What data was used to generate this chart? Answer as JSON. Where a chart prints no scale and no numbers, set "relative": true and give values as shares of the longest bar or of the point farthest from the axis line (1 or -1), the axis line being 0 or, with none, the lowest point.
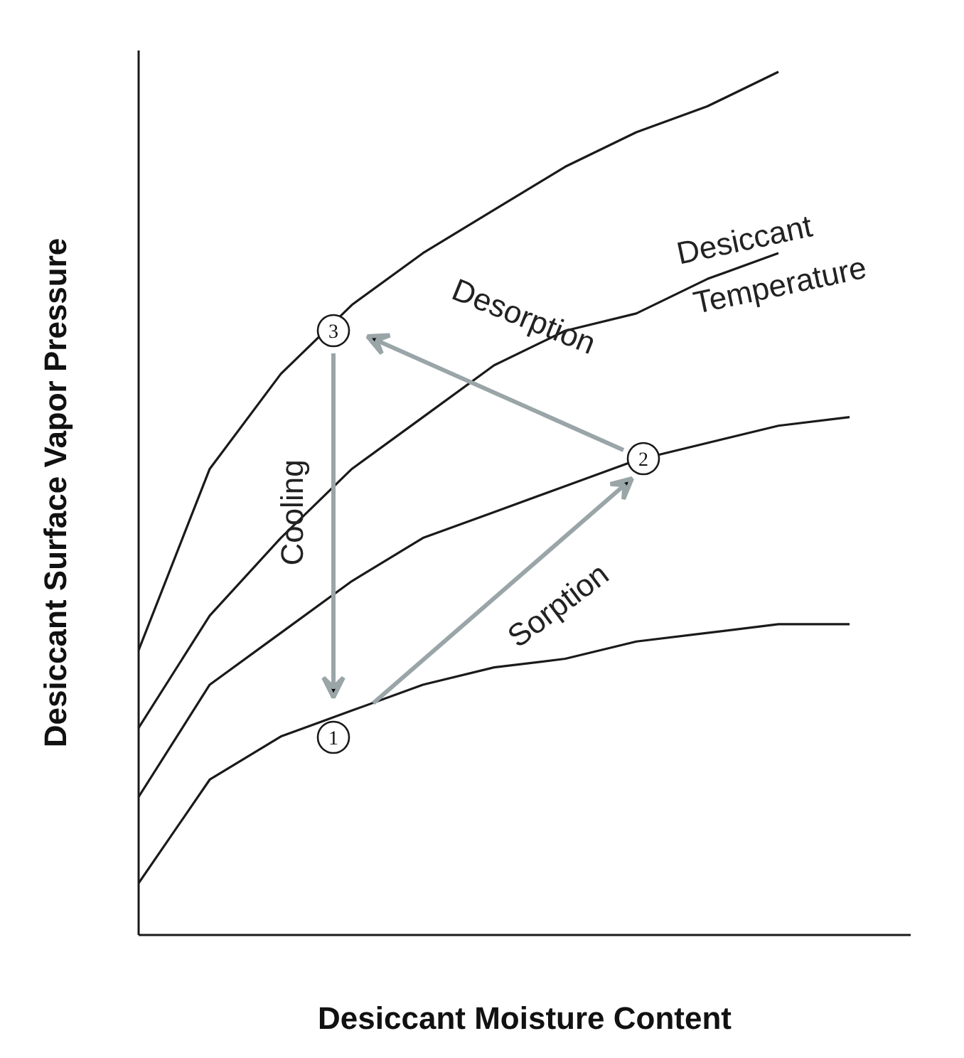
{
  "chart_data": {
    "type": "line",
    "relative": true,
    "xlabel": "Desiccant Moisture Content",
    "ylabel": "Desiccant Surface Vapor Pressure",
    "categories": [
      null,
      null,
      null,
      null,
      null,
      null,
      null,
      null,
      null,
      null,
      null
    ],
    "series": [
      {
        "color": "#1a1a1a",
        "values": [
          0.33,
          0.54,
          0.65,
          0.73,
          0.79,
          0.84,
          0.89,
          0.93,
          0.96,
          1.0,
          null
        ]
      },
      {
        "color": "#1a1a1a",
        "values": [
          0.24,
          0.37,
          0.46,
          0.54,
          0.6,
          0.66,
          0.7,
          0.72,
          0.76,
          0.79,
          null
        ]
      },
      {
        "color": "#1a1a1a",
        "values": [
          0.16,
          0.29,
          0.35,
          0.41,
          0.46,
          0.49,
          0.52,
          0.55,
          0.57,
          0.59,
          0.6
        ]
      },
      {
        "color": "#1a1a1a",
        "values": [
          0.06,
          0.18,
          0.23,
          0.26,
          0.29,
          0.31,
          0.32,
          0.34,
          0.35,
          0.36,
          0.36
        ]
      }
    ],
    "annotations": [
      "1",
      "2",
      "3",
      "Cooling",
      "Sorption",
      "Desorption",
      "Desiccant",
      "Temperature"
    ],
    "grid": false,
    "marker": "none",
    "line_style": "solid"
  }
}
